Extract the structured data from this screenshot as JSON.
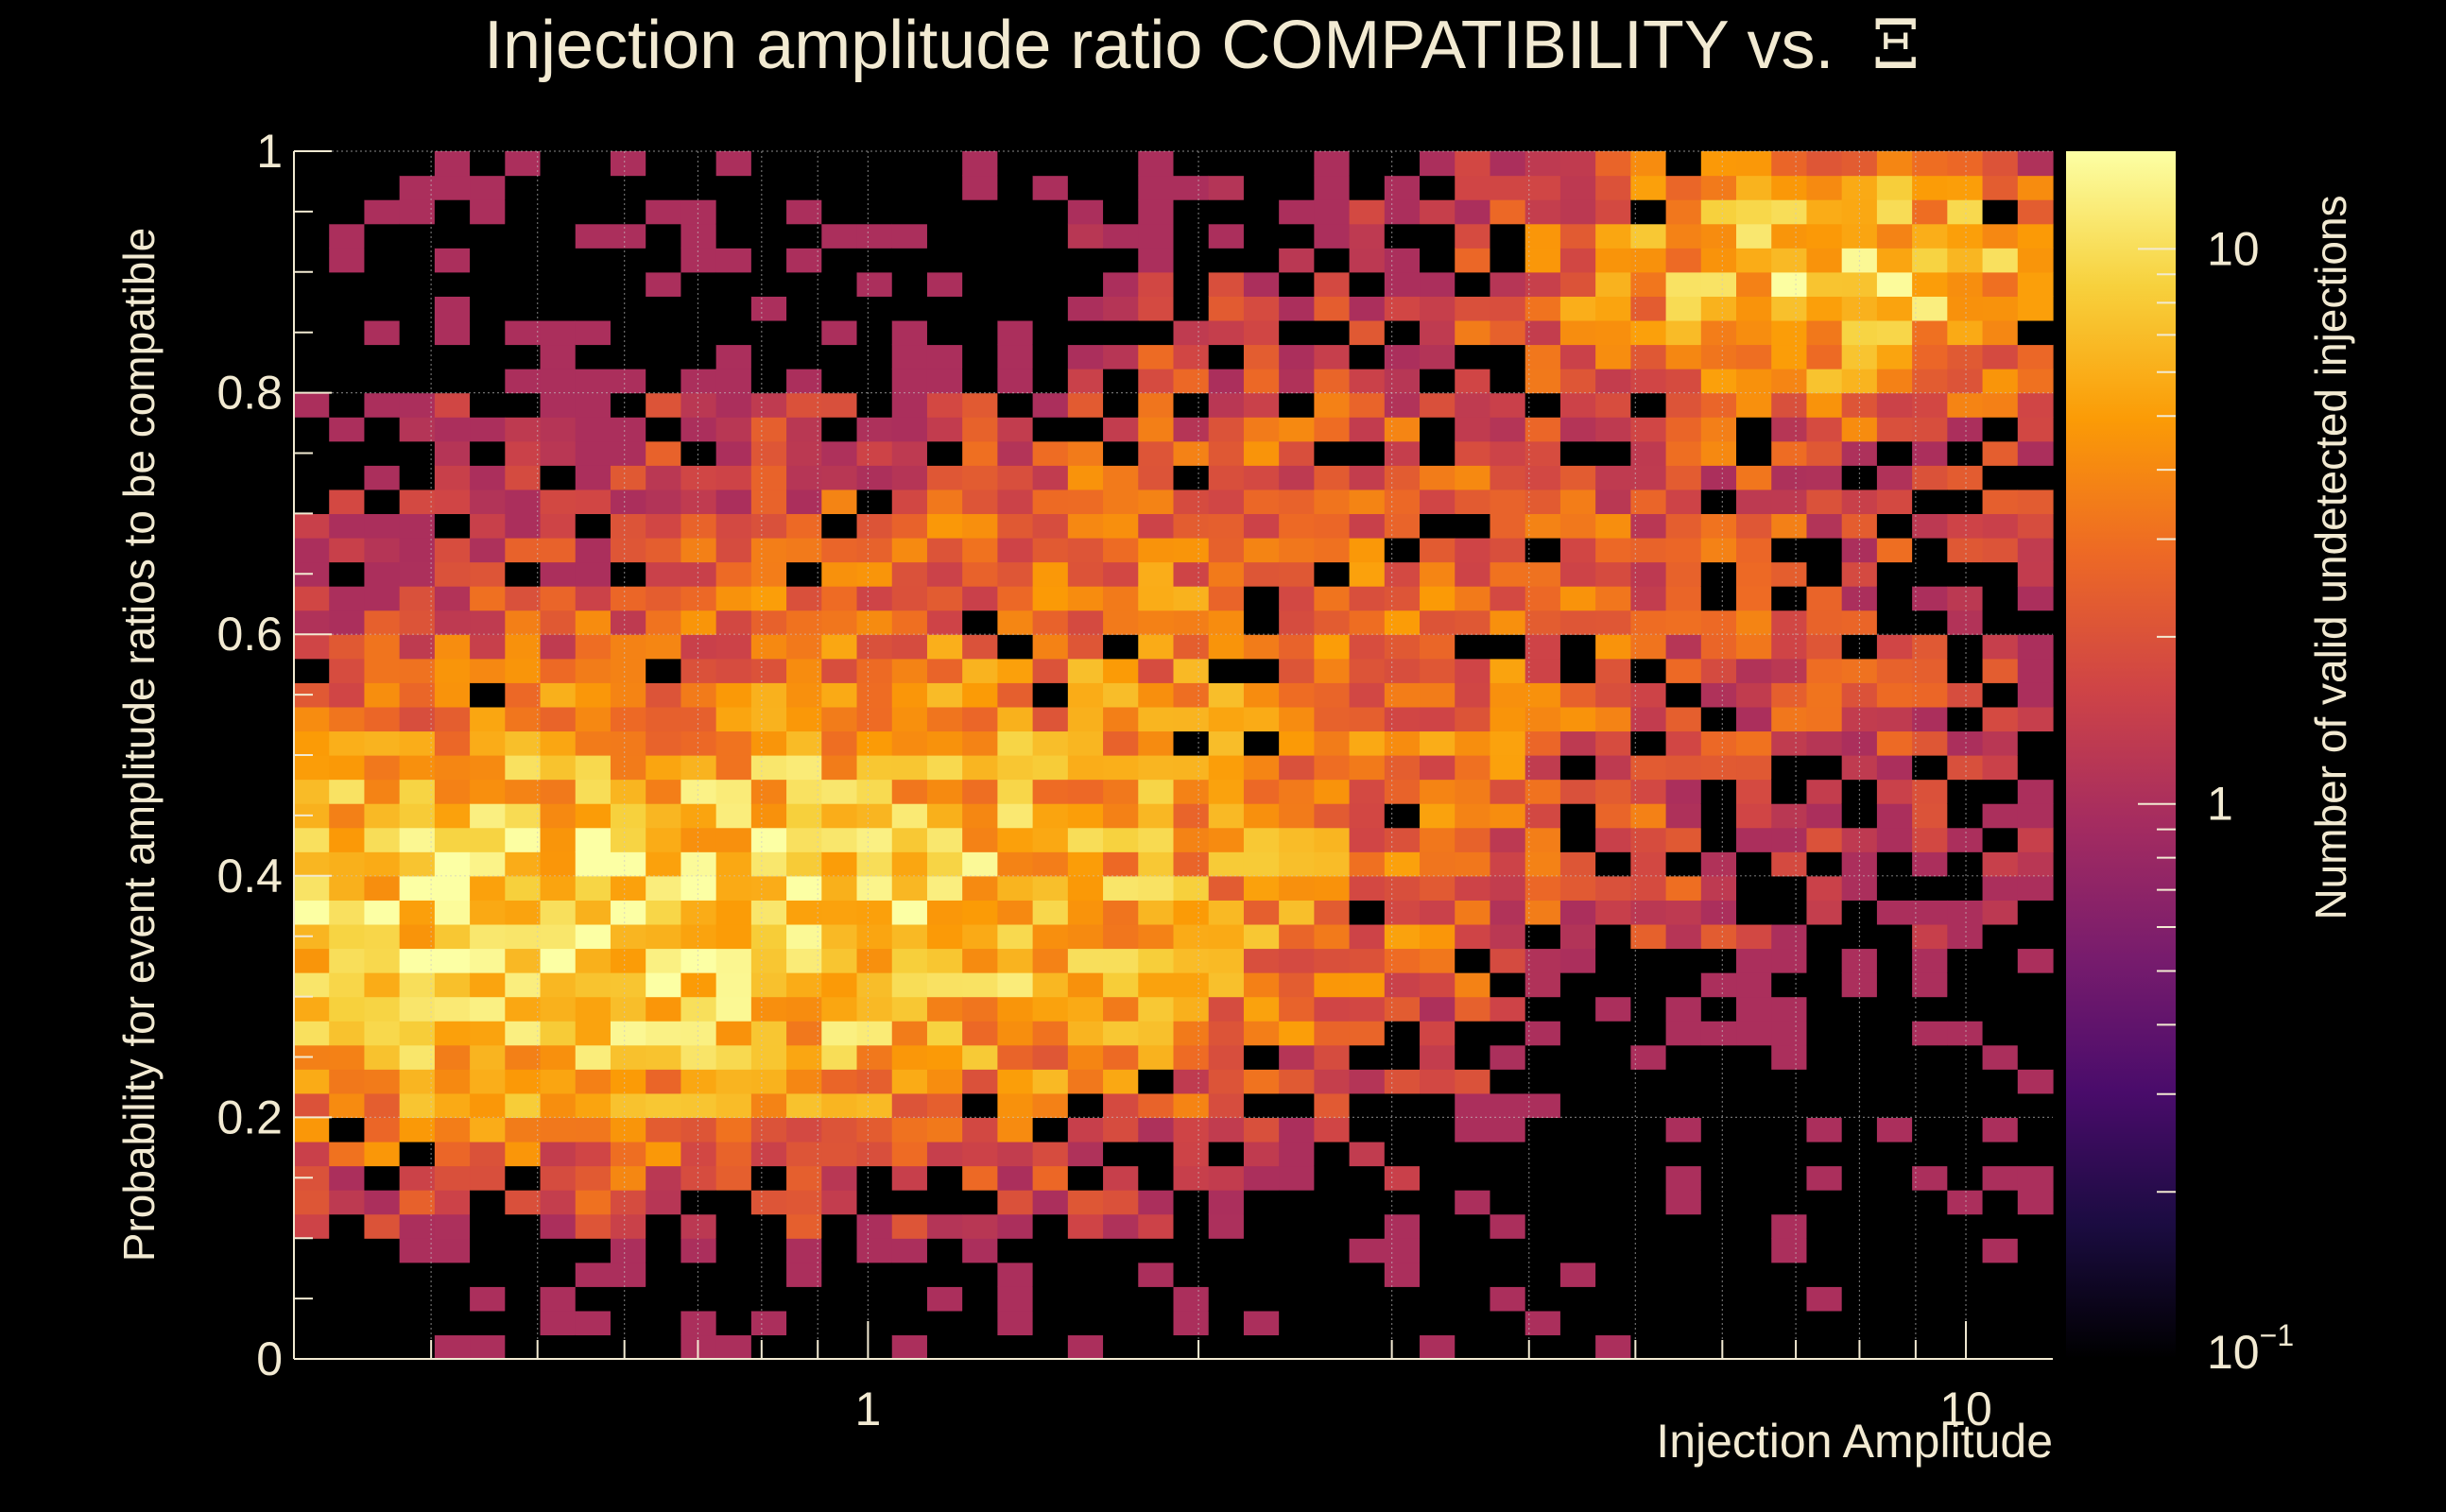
{
  "chart_data": {
    "type": "heatmap",
    "title": "Injection amplitude ratio COMPATIBILITY vs.",
    "title_symbol": "Ξ",
    "xlabel": "Injection Amplitude",
    "ylabel": "Probability for event amplitude ratios to be compatible",
    "zlabel": "Number of valid undetected injections",
    "x_scale": "log",
    "xlim": [
      0.3,
      12
    ],
    "x_ticks": [
      {
        "value": 1,
        "label": "1"
      },
      {
        "value": 10,
        "label": "10"
      }
    ],
    "ylim": [
      0,
      1
    ],
    "y_ticks": [
      {
        "value": 0,
        "label": "0"
      },
      {
        "value": 0.2,
        "label": "0.2"
      },
      {
        "value": 0.4,
        "label": "0.4"
      },
      {
        "value": 0.6,
        "label": "0.6"
      },
      {
        "value": 0.8,
        "label": "0.8"
      },
      {
        "value": 1,
        "label": "1"
      }
    ],
    "z_scale": "log",
    "zlim": [
      0.1,
      15
    ],
    "z_ticks": [
      {
        "value": 0.1,
        "label": "10",
        "exponent": "−1"
      },
      {
        "value": 1,
        "label": "1"
      },
      {
        "value": 10,
        "label": "10"
      }
    ],
    "colormap": [
      "#000000",
      "#1b0c41",
      "#4a0c6b",
      "#781c6d",
      "#a52c60",
      "#cf4446",
      "#ed6925",
      "#fb9b06",
      "#f7d13d",
      "#fcffa4"
    ],
    "grid": true,
    "n_x_bins": 50,
    "n_y_bins": 50,
    "z_description": "Counts are highest (about 5–15) at low amplitude (0.3–2) for probabilities 0.2–0.55 and at high amplitude (6–10) for probabilities 0.8–0.95; mostly empty bins at high amplitude with low probability and at low amplitude with high probability."
  }
}
